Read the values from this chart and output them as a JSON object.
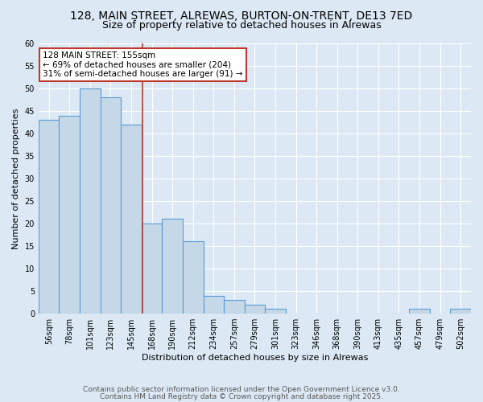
{
  "title_line1": "128, MAIN STREET, ALREWAS, BURTON-ON-TRENT, DE13 7ED",
  "title_line2": "Size of property relative to detached houses in Alrewas",
  "xlabel": "Distribution of detached houses by size in Alrewas",
  "ylabel": "Number of detached properties",
  "bin_labels": [
    "56sqm",
    "78sqm",
    "101sqm",
    "123sqm",
    "145sqm",
    "168sqm",
    "190sqm",
    "212sqm",
    "234sqm",
    "257sqm",
    "279sqm",
    "301sqm",
    "323sqm",
    "346sqm",
    "368sqm",
    "390sqm",
    "413sqm",
    "435sqm",
    "457sqm",
    "479sqm",
    "502sqm"
  ],
  "values": [
    43,
    44,
    50,
    48,
    42,
    20,
    21,
    16,
    4,
    3,
    2,
    1,
    0,
    0,
    0,
    0,
    0,
    0,
    1,
    0,
    1
  ],
  "bar_color": "#c5d8e8",
  "bar_edge_color": "#5b9bd5",
  "bar_linewidth": 0.8,
  "bg_color": "#dce9f5",
  "vline_color": "#c0392b",
  "vline_x_index": 4.55,
  "annotation_text": "128 MAIN STREET: 155sqm\n← 69% of detached houses are smaller (204)\n31% of semi-detached houses are larger (91) →",
  "annotation_box_color": "#ffffff",
  "annotation_box_edge": "#c0392b",
  "ylim": [
    0,
    60
  ],
  "yticks": [
    0,
    5,
    10,
    15,
    20,
    25,
    30,
    35,
    40,
    45,
    50,
    55,
    60
  ],
  "footnote_line1": "Contains HM Land Registry data © Crown copyright and database right 2025.",
  "footnote_line2": "Contains public sector information licensed under the Open Government Licence v3.0.",
  "title_fontsize": 10,
  "subtitle_fontsize": 9,
  "axis_label_fontsize": 8,
  "tick_fontsize": 7,
  "annotation_fontsize": 7.5,
  "footnote_fontsize": 6.5
}
